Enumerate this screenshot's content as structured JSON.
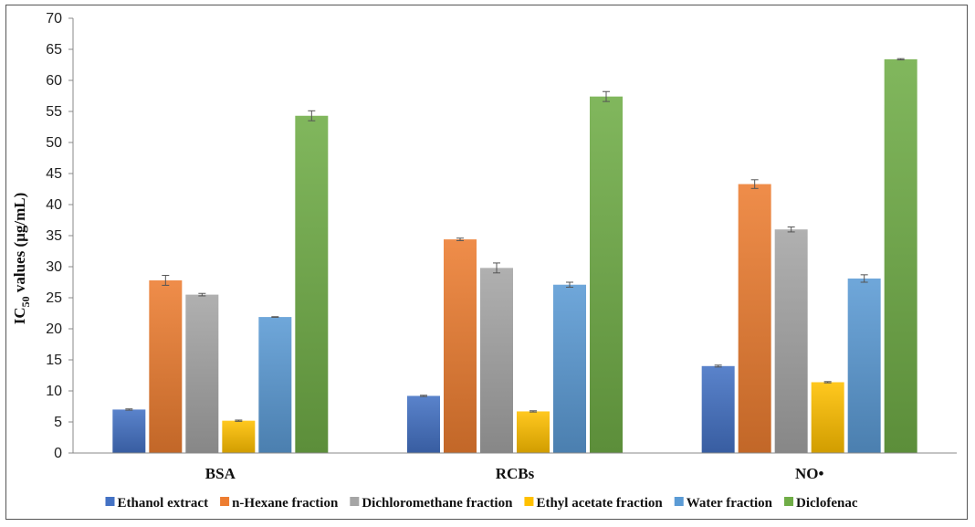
{
  "chart_data": {
    "type": "bar",
    "title": "",
    "xlabel": "",
    "ylabel": {
      "main": "IC",
      "sub": "50",
      "rest": " values (µg/mL)"
    },
    "ylim": [
      0,
      70
    ],
    "yticks": [
      0,
      5,
      10,
      15,
      20,
      25,
      30,
      35,
      40,
      45,
      50,
      55,
      60,
      65,
      70
    ],
    "grid": false,
    "legend_position": "bottom",
    "categories": [
      "BSA",
      "RCBs",
      "NO•"
    ],
    "series": [
      {
        "name": "Ethanol extract",
        "color": "#4472C4",
        "values": [
          7.0,
          9.2,
          14.0
        ],
        "errors": [
          0.1,
          0.1,
          0.15
        ]
      },
      {
        "name": "n-Hexane fraction",
        "color": "#ED7D31",
        "values": [
          27.8,
          34.4,
          43.3
        ],
        "errors": [
          0.8,
          0.2,
          0.7
        ]
      },
      {
        "name": "Dichloromethane fraction",
        "color": "#A5A5A5",
        "values": [
          25.5,
          29.8,
          36.0
        ],
        "errors": [
          0.2,
          0.8,
          0.4
        ]
      },
      {
        "name": "Ethyl acetate fraction",
        "color": "#FFC000",
        "values": [
          5.2,
          6.7,
          11.4
        ],
        "errors": [
          0.1,
          0.1,
          0.1
        ]
      },
      {
        "name": "Water fraction",
        "color": "#5B9BD5",
        "values": [
          21.9,
          27.1,
          28.1
        ],
        "errors": [
          0.05,
          0.4,
          0.6
        ]
      },
      {
        "name": "Diclofenac",
        "color": "#70AD47",
        "values": [
          54.3,
          57.4,
          63.4
        ],
        "errors": [
          0.8,
          0.8,
          0.1
        ]
      }
    ]
  }
}
